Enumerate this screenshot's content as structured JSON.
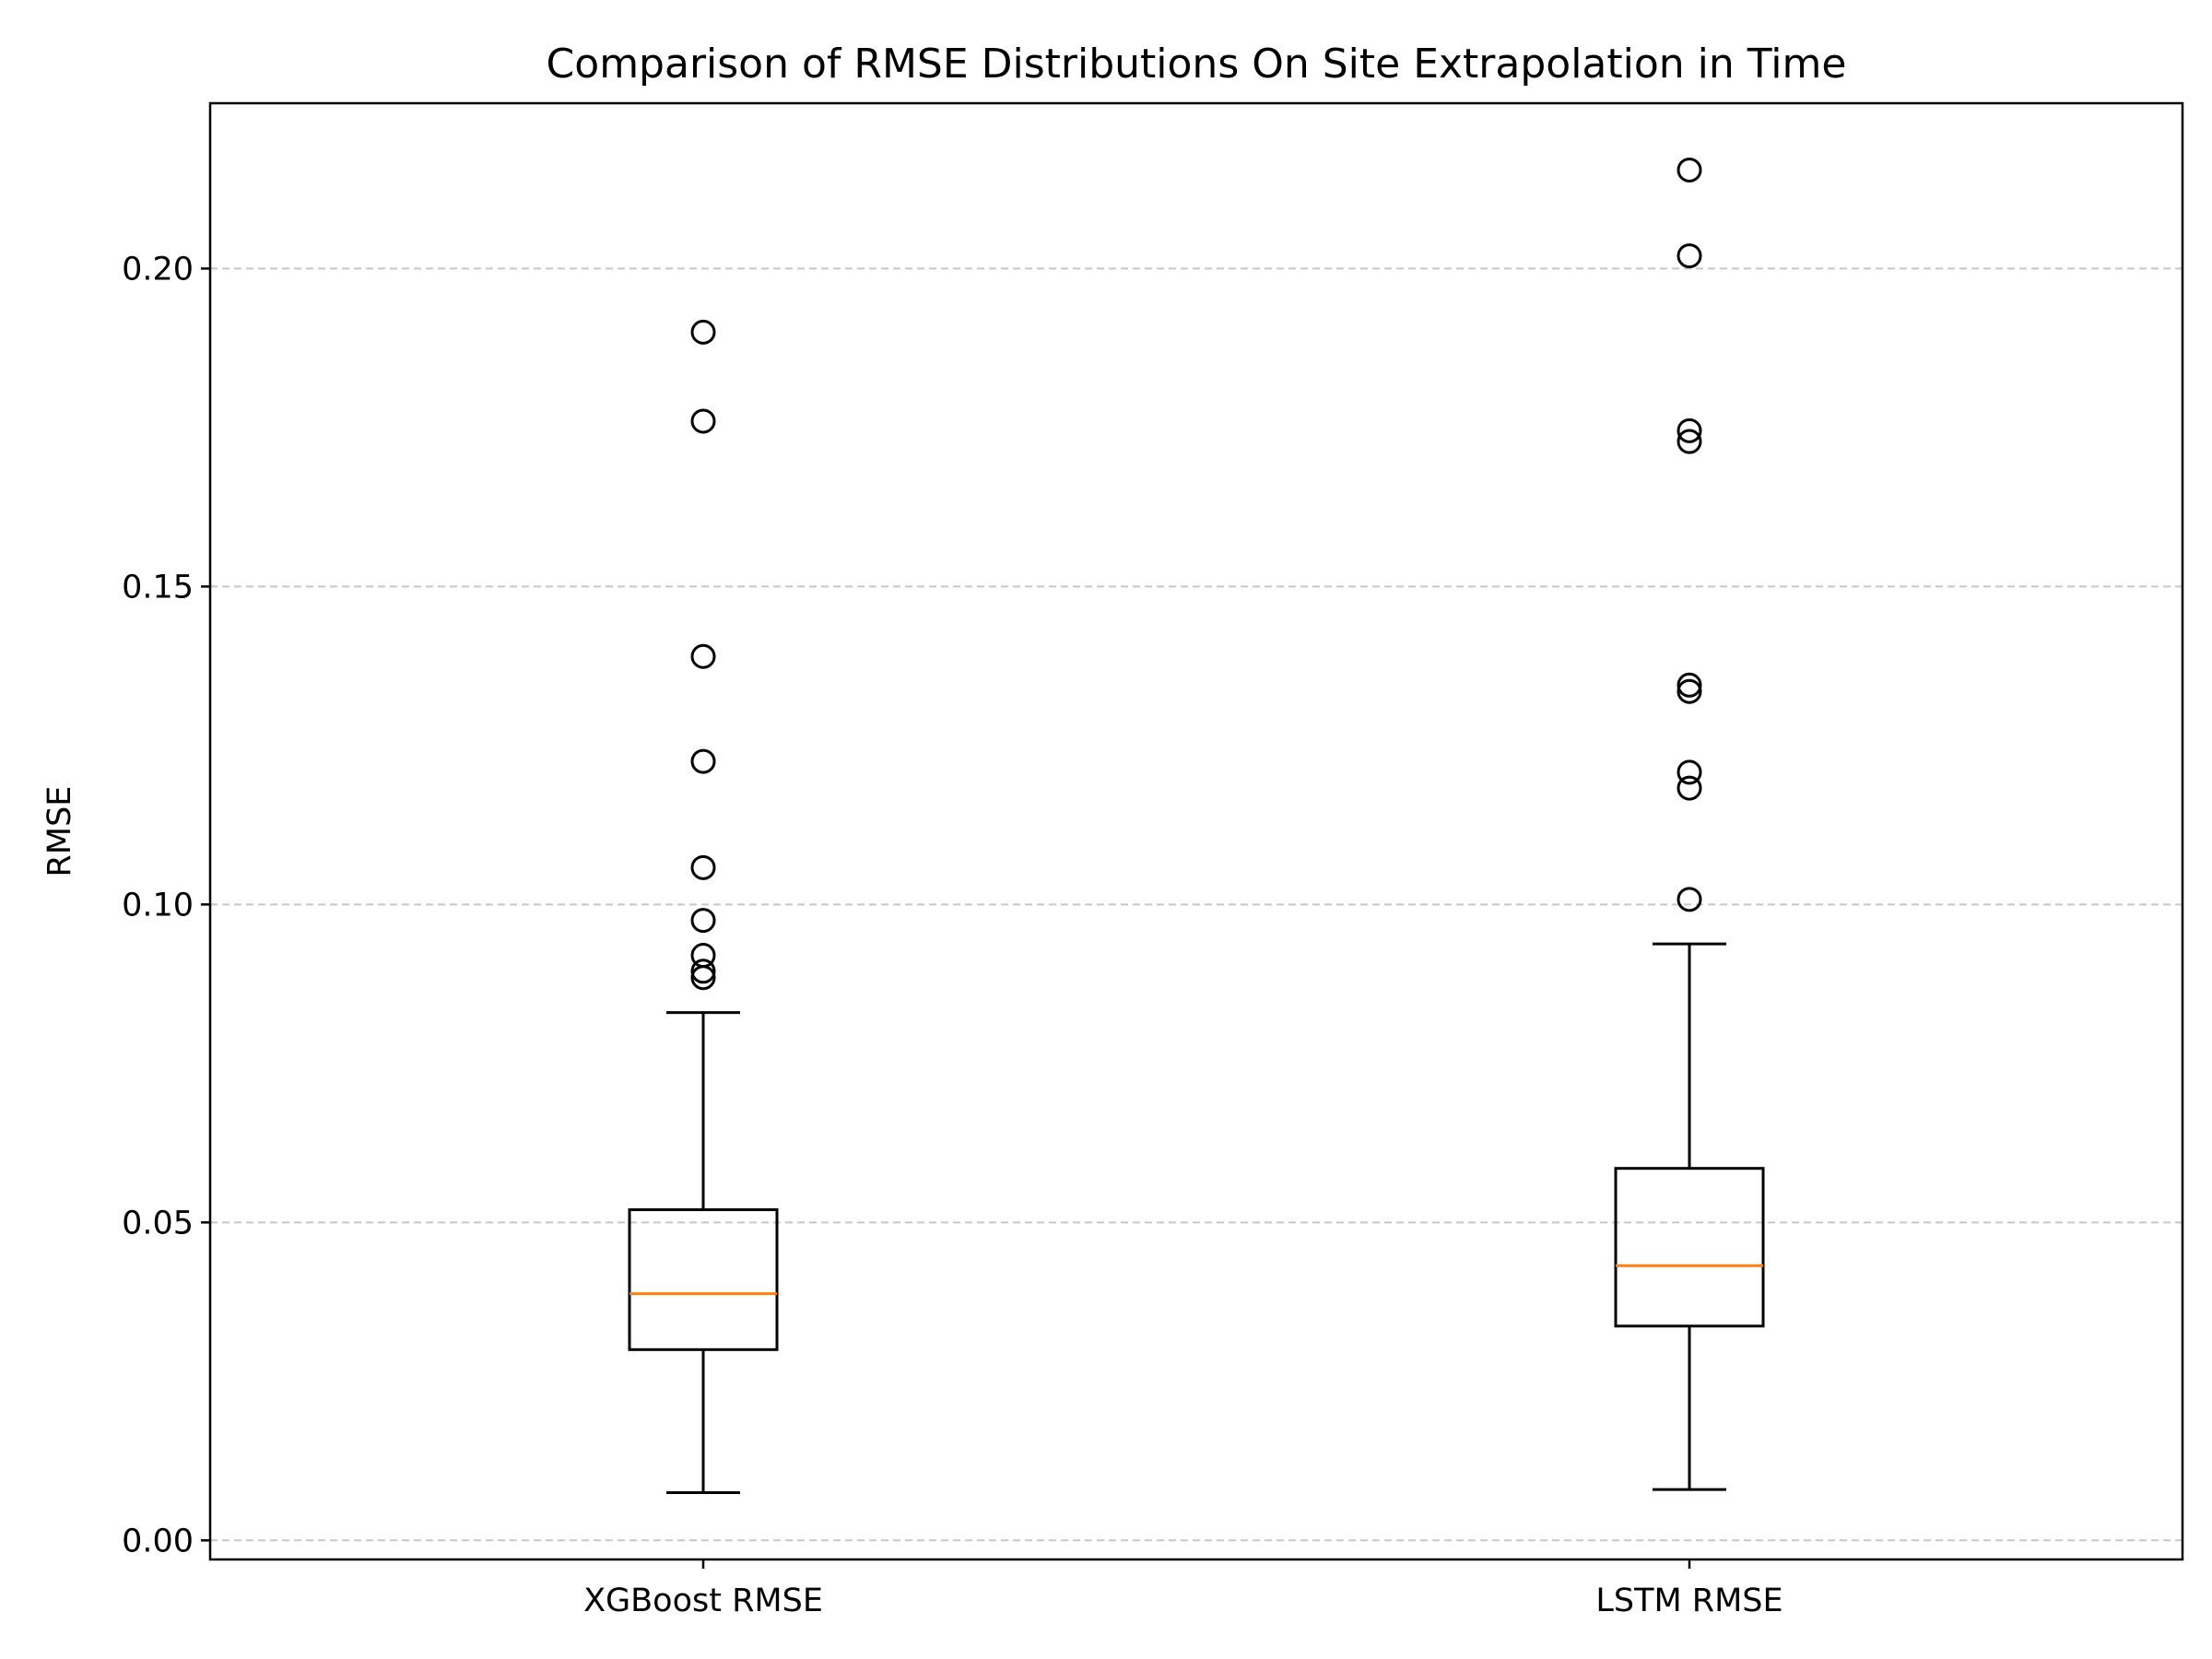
{
  "chart_data": {
    "type": "box",
    "title": "Comparison of RMSE Distributions On Site Extrapolation in Time",
    "xlabel": "",
    "ylabel": "RMSE",
    "ylim": [
      -0.003,
      0.226
    ],
    "yticks": [
      0.0,
      0.05,
      0.1,
      0.15,
      0.2
    ],
    "ytick_labels": [
      "0.00",
      "0.05",
      "0.10",
      "0.15",
      "0.20"
    ],
    "grid": {
      "y": true,
      "x": false,
      "style": "dashed"
    },
    "categories": [
      "XGBoost RMSE",
      "LSTM RMSE"
    ],
    "boxes": [
      {
        "name": "XGBoost RMSE",
        "whisker_low": 0.0075,
        "q1": 0.03,
        "median": 0.0388,
        "q3": 0.052,
        "whisker_high": 0.083,
        "outliers": [
          0.19,
          0.176,
          0.139,
          0.1225,
          0.1058,
          0.0975,
          0.092,
          0.0895,
          0.0885
        ]
      },
      {
        "name": "LSTM RMSE",
        "whisker_low": 0.008,
        "q1": 0.0337,
        "median": 0.0432,
        "q3": 0.0585,
        "whisker_high": 0.0938,
        "outliers": [
          0.2155,
          0.202,
          0.1745,
          0.1728,
          0.1345,
          0.1335,
          0.1208,
          0.1183,
          0.1008
        ]
      }
    ],
    "colors": {
      "box": "#000000",
      "median": "#ff7f0e",
      "grid": "#b0b0b0"
    }
  }
}
